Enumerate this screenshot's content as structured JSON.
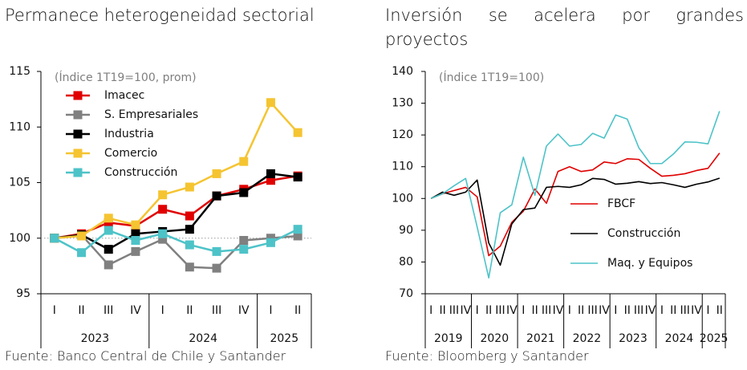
{
  "chart_data": [
    {
      "type": "line",
      "title": "Permanece heterogeneidad sectorial",
      "subtitle": "(Índice 1T19=100, prom)",
      "source": "Fuente: Banco Central de Chile y Santander",
      "categories": [
        "I",
        "II",
        "III",
        "IV",
        "I",
        "II",
        "III",
        "IV",
        "I",
        "II"
      ],
      "groups": [
        "2023",
        "2024",
        "2025"
      ],
      "ylim": [
        95,
        115
      ],
      "yticks": [
        95,
        100,
        105,
        110,
        115
      ],
      "reference_line": 100,
      "markers": true,
      "legend": "top-left",
      "series": [
        {
          "name": "Imacec",
          "color": "#e00000",
          "values": [
            100,
            100.4,
            101.4,
            101.1,
            102.6,
            102.0,
            103.8,
            104.4,
            105.2,
            105.6
          ]
        },
        {
          "name": "S. Empresariales",
          "color": "#808080",
          "values": [
            100,
            100.3,
            97.6,
            98.8,
            99.9,
            97.4,
            97.3,
            99.8,
            100.0,
            100.2
          ]
        },
        {
          "name": "Industria",
          "color": "#000000",
          "values": [
            100,
            100.3,
            99.0,
            100.4,
            100.6,
            100.8,
            103.8,
            104.1,
            105.8,
            105.5
          ]
        },
        {
          "name": "Comercio",
          "color": "#f5c431",
          "values": [
            100,
            100.2,
            101.8,
            101.2,
            103.9,
            104.6,
            105.8,
            106.9,
            112.2,
            109.5
          ]
        },
        {
          "name": "Construcción",
          "color": "#4dc3c8",
          "values": [
            100,
            98.7,
            100.7,
            99.8,
            100.4,
            99.4,
            98.8,
            99.0,
            99.6,
            100.8
          ]
        }
      ]
    },
    {
      "type": "line",
      "title": "Inversión se acelera por grandes proyectos",
      "subtitle": "(Índice 1T19=100)",
      "source": "Fuente: Bloomberg y Santander",
      "categories": [
        "I",
        "II",
        "III",
        "IV",
        "I",
        "II",
        "III",
        "IV",
        "I",
        "II",
        "III",
        "IV",
        "I",
        "II",
        "III",
        "IV",
        "I",
        "II",
        "III",
        "IV",
        "I",
        "II",
        "III",
        "IV",
        "I",
        "II"
      ],
      "groups": [
        "2019",
        "2020",
        "2021",
        "2022",
        "2023",
        "2024",
        "2025"
      ],
      "ylim": [
        70,
        140
      ],
      "yticks": [
        70,
        80,
        90,
        100,
        110,
        120,
        130,
        140
      ],
      "markers": false,
      "legend": "lower-right",
      "series": [
        {
          "name": "FBCF",
          "color": "#e00000",
          "values": [
            100,
            101.5,
            102.5,
            103.5,
            100.5,
            82,
            85,
            92.5,
            96,
            103,
            98.5,
            108.5,
            110,
            108.5,
            109,
            111.5,
            111,
            112.5,
            112.3,
            109.5,
            107,
            107.3,
            107.8,
            108.8,
            109.5,
            114.3
          ]
        },
        {
          "name": "Construcción",
          "color": "#000000",
          "values": [
            100,
            102,
            101,
            102,
            105.8,
            86,
            79,
            92,
            96.5,
            97,
            103.5,
            103.8,
            103.5,
            104.3,
            106.3,
            106,
            104.5,
            104.8,
            105.3,
            104.7,
            105,
            104.3,
            103.5,
            104.5,
            105.2,
            106.4
          ]
        },
        {
          "name": "Maq. y Equipos",
          "color": "#4dc3c8",
          "values": [
            100,
            101.5,
            104,
            106.3,
            91,
            75,
            95.5,
            98,
            113,
            101,
            116.5,
            120.3,
            116.5,
            117,
            120.5,
            119,
            126.3,
            125,
            116,
            111,
            111,
            114,
            117.8,
            117.7,
            117.2,
            127.5
          ]
        }
      ]
    }
  ]
}
